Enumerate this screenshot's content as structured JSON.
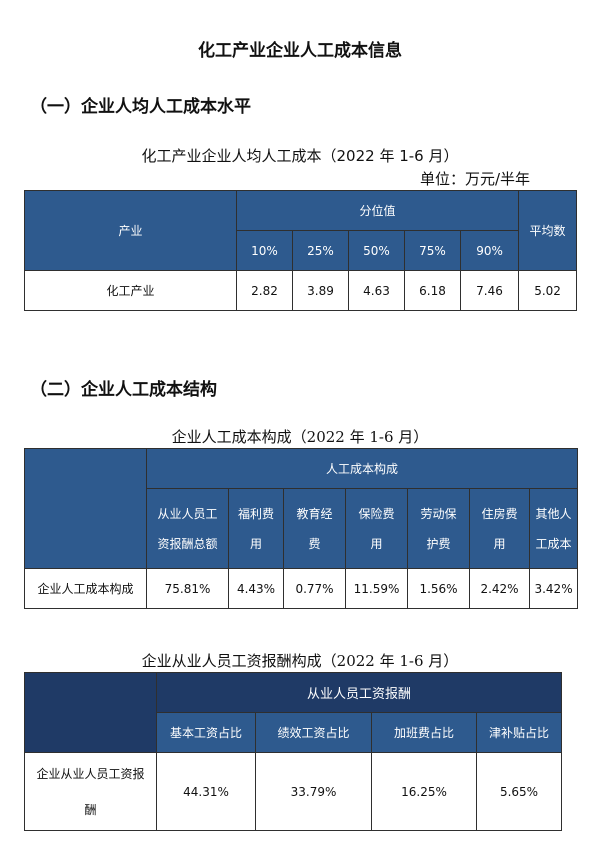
{
  "page_title": "化工产业企业人工成本信息",
  "section1": {
    "heading": "（一）企业人均人工成本水平",
    "caption": "化工产业企业人均人工成本（2022 年 1-6 月）",
    "unit": "单位：万元/半年",
    "header": {
      "industry": "产业",
      "percentile": "分位值",
      "average": "平均数",
      "percentiles": [
        "10%",
        "25%",
        "50%",
        "75%",
        "90%"
      ]
    },
    "row": {
      "label": "化工产业",
      "values": [
        "2.82",
        "3.89",
        "4.63",
        "6.18",
        "7.46"
      ],
      "average": "5.02"
    }
  },
  "section2": {
    "heading": "（二）企业人工成本结构",
    "caption1": "企业人工成本构成（2022 年 1-6 月）",
    "table1": {
      "group_header": "人工成本构成",
      "columns": [
        [
          "从业人员工",
          "资报酬总额"
        ],
        [
          "福利费",
          "用"
        ],
        [
          "教育经",
          "费"
        ],
        [
          "保险费",
          "用"
        ],
        [
          "劳动保",
          "护费"
        ],
        [
          "住房费",
          "用"
        ],
        [
          "其他人",
          "工成本"
        ]
      ],
      "row_label": "企业人工成本构成",
      "values": [
        "75.81%",
        "4.43%",
        "0.77%",
        "11.59%",
        "1.56%",
        "2.42%",
        "3.42%"
      ]
    },
    "caption2": "企业从业人员工资报酬构成（2022 年 1-6 月）",
    "table2": {
      "group_header": "从业人员工资报酬",
      "columns": [
        "基本工资占比",
        "绩效工资占比",
        "加班费占比",
        "津补贴占比"
      ],
      "row_label": [
        "企业从业人员工资报",
        "酬"
      ],
      "values": [
        "44.31%",
        "33.79%",
        "16.25%",
        "5.65%"
      ]
    }
  }
}
